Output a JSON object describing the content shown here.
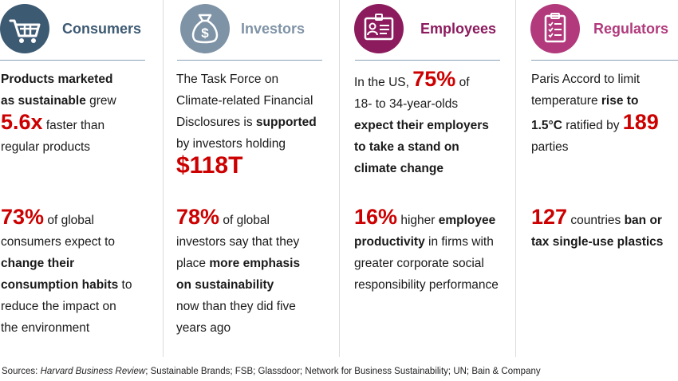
{
  "columns": [
    {
      "title": "Consumers",
      "icon": "shopping-cart-icon",
      "color": "#3d5a73",
      "stat1": {
        "b1": "Products marketed",
        "b2": "as sustainable",
        "t1": " grew",
        "big": "5.6x",
        "t2": " faster than",
        "t3": "regular products"
      },
      "stat2": {
        "big": "73%",
        "t1": " of global",
        "t2": "consumers expect to",
        "b1": "change their",
        "b2": "consumption habits",
        "t3": " to",
        "t4": "reduce the impact on",
        "t5": "the environment"
      }
    },
    {
      "title": "Investors",
      "icon": "money-bag-icon",
      "color": "#7f93a6",
      "stat1": {
        "t1": "The Task Force on",
        "t2": "Climate-related Financial",
        "t3": "Disclosures is ",
        "b1": "supported",
        "t4": "by investors holding",
        "big": "$118T"
      },
      "stat2": {
        "big": "78%",
        "t1": " of global",
        "t2": "investors say that they",
        "t3": "place ",
        "b1": "more emphasis",
        "b2": "on sustainability",
        "t4": "now than they did five",
        "t5": "years ago"
      }
    },
    {
      "title": "Employees",
      "icon": "id-badge-icon",
      "color": "#8c1b5e",
      "stat1": {
        "t1": "In the US, ",
        "big": "75%",
        "t2": " of",
        "t3": "18- to 34-year-olds",
        "b1": "expect their employers",
        "b2": "to take a stand on",
        "b3": "climate change"
      },
      "stat2": {
        "big": "16%",
        "t1": " higher ",
        "b1": "employee",
        "b2": "productivity",
        "t2": " in firms with",
        "t3": "greater corporate social",
        "t4": "responsibility performance"
      }
    },
    {
      "title": "Regulators",
      "icon": "clipboard-checklist-icon",
      "color": "#b23a7c",
      "stat1": {
        "t1": "Paris Accord to limit",
        "t2": "temperature ",
        "b1": "rise to",
        "b2": "1.5°C",
        "t3": " ratified by ",
        "big": "189",
        "t4": "parties"
      },
      "stat2": {
        "big": "127",
        "t1": " countries ",
        "b1": "ban or",
        "b2": "tax single-use plastics"
      }
    }
  ],
  "sources": {
    "prefix": "Sources: ",
    "hbr": "Harvard Business Review",
    "rest": "; Sustainable Brands; FSB; Glassdoor; Network for Business Sustainability; UN; Bain & Company"
  },
  "colors": {
    "accent_red": "#cc0000",
    "rule": "#8aa2b8",
    "divider": "#dcdcdc"
  }
}
